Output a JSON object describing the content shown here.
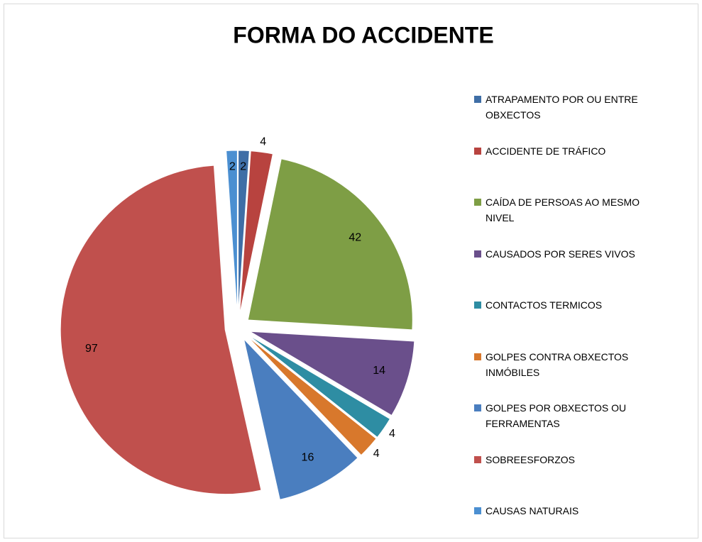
{
  "chart_data": {
    "type": "pie",
    "title": "FORMA DO ACCIDENTE",
    "categories": [
      "ATRAPAMENTO POR OU ENTRE OBXECTOS",
      "ACCIDENTE DE TRÁFICO",
      "CAÍDA DE PERSOAS AO MESMO NIVEL",
      "CAUSADOS POR SERES VIVOS",
      "CONTACTOS TERMICOS",
      "GOLPES CONTRA OBXECTOS INMÓBILES",
      "GOLPES POR OBXECTOS OU FERRAMENTAS",
      "SOBREESFORZOS",
      "CAUSAS NATURAIS"
    ],
    "values": [
      2,
      4,
      42,
      14,
      4,
      4,
      16,
      97,
      2
    ],
    "colors": [
      "#3f6ea6",
      "#b8433f",
      "#7e9e45",
      "#6a4f8b",
      "#2e8da3",
      "#d8782c",
      "#4a7ebf",
      "#c0504d",
      "#4b8fd1"
    ],
    "legend": "right"
  }
}
